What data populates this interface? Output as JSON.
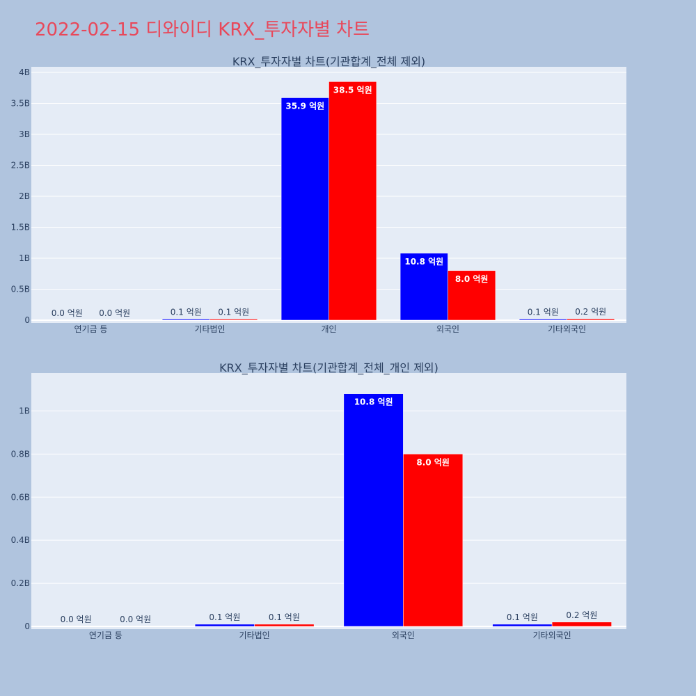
{
  "page_title": "2022-02-15 디와이디 KRX_투자자별 차트",
  "colors": {
    "background": "#b0c4de",
    "plot_bg": "#e5ecf6",
    "grid": "#ffffff",
    "series_a": "#0000ff",
    "series_b": "#ff0000",
    "title": "#e8485a",
    "text": "#2a3f5f"
  },
  "chart_data": [
    {
      "type": "bar",
      "title": "KRX_투자자별 차트(기관합계_전체 제외)",
      "categories": [
        "연기금 등",
        "기타법인",
        "개인",
        "외국인",
        "기타외국인"
      ],
      "ylim": [
        0,
        4000000000
      ],
      "yticks": [
        0,
        500000000,
        1000000000,
        1500000000,
        2000000000,
        2500000000,
        3000000000,
        3500000000,
        4000000000
      ],
      "ytick_labels": [
        "0",
        "0.5B",
        "1B",
        "1.5B",
        "2B",
        "2.5B",
        "3B",
        "3.5B",
        "4B"
      ],
      "grid": true,
      "series": [
        {
          "color": "#0000ff",
          "values": [
            0,
            10000000,
            3590000000,
            1080000000,
            10000000
          ],
          "labels": [
            "0.0 억원",
            "0.1 억원",
            "35.9 억원",
            "10.8 억원",
            "0.1 억원"
          ]
        },
        {
          "color": "#ff0000",
          "values": [
            0,
            10000000,
            3850000000,
            800000000,
            20000000
          ],
          "labels": [
            "0.0 억원",
            "0.1 억원",
            "38.5 억원",
            "8.0 억원",
            "0.2 억원"
          ]
        }
      ]
    },
    {
      "type": "bar",
      "title": "KRX_투자자별 차트(기관합계_전체_개인 제외)",
      "categories": [
        "연기금 등",
        "기타법인",
        "외국인",
        "기타외국인"
      ],
      "ylim": [
        0,
        1150000000
      ],
      "yticks": [
        0,
        200000000,
        400000000,
        600000000,
        800000000,
        1000000000
      ],
      "ytick_labels": [
        "0",
        "0.2B",
        "0.4B",
        "0.6B",
        "0.8B",
        "1B"
      ],
      "grid": true,
      "series": [
        {
          "color": "#0000ff",
          "values": [
            0,
            10000000,
            1080000000,
            10000000
          ],
          "labels": [
            "0.0 억원",
            "0.1 억원",
            "10.8 억원",
            "0.1 억원"
          ]
        },
        {
          "color": "#ff0000",
          "values": [
            0,
            10000000,
            800000000,
            20000000
          ],
          "labels": [
            "0.0 억원",
            "0.1 억원",
            "8.0 억원",
            "0.2 억원"
          ]
        }
      ]
    }
  ]
}
